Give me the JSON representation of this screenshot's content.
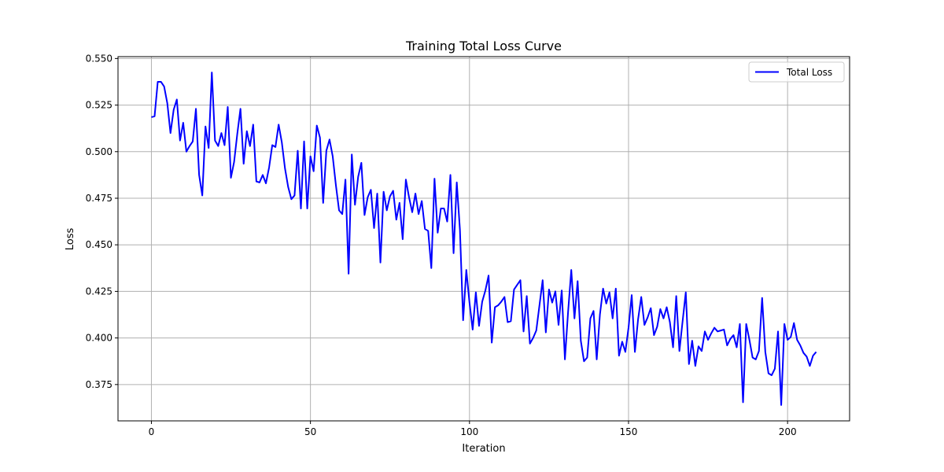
{
  "chart_data": {
    "type": "line",
    "title": "Training Total Loss Curve",
    "xlabel": "Iteration",
    "ylabel": "Loss",
    "xlim": [
      -10.5,
      219.5
    ],
    "ylim": [
      0.3555,
      0.551
    ],
    "xticks": [
      0,
      50,
      100,
      150,
      200
    ],
    "xtick_labels": [
      "0",
      "50",
      "100",
      "150",
      "200"
    ],
    "yticks": [
      0.375,
      0.4,
      0.425,
      0.45,
      0.475,
      0.5,
      0.525,
      0.55
    ],
    "ytick_labels": [
      "0.375",
      "0.400",
      "0.425",
      "0.450",
      "0.475",
      "0.500",
      "0.525",
      "0.550"
    ],
    "grid": true,
    "legend_position": "top-right",
    "series": [
      {
        "name": "Total Loss",
        "color": "#0000ff",
        "x": [
          0,
          1,
          2,
          3,
          4,
          5,
          6,
          7,
          8,
          9,
          10,
          11,
          12,
          13,
          14,
          15,
          16,
          17,
          18,
          19,
          20,
          21,
          22,
          23,
          24,
          25,
          26,
          27,
          28,
          29,
          30,
          31,
          32,
          33,
          34,
          35,
          36,
          37,
          38,
          39,
          40,
          41,
          42,
          43,
          44,
          45,
          46,
          47,
          48,
          49,
          50,
          51,
          52,
          53,
          54,
          55,
          56,
          57,
          58,
          59,
          60,
          61,
          62,
          63,
          64,
          65,
          66,
          67,
          68,
          69,
          70,
          71,
          72,
          73,
          74,
          75,
          76,
          77,
          78,
          79,
          80,
          81,
          82,
          83,
          84,
          85,
          86,
          87,
          88,
          89,
          90,
          91,
          92,
          93,
          94,
          95,
          96,
          97,
          98,
          99,
          100,
          101,
          102,
          103,
          104,
          105,
          106,
          107,
          108,
          109,
          110,
          111,
          112,
          113,
          114,
          115,
          116,
          117,
          118,
          119,
          120,
          121,
          122,
          123,
          124,
          125,
          126,
          127,
          128,
          129,
          130,
          131,
          132,
          133,
          134,
          135,
          136,
          137,
          138,
          139,
          140,
          141,
          142,
          143,
          144,
          145,
          146,
          147,
          148,
          149,
          150,
          151,
          152,
          153,
          154,
          155,
          156,
          157,
          158,
          159,
          160,
          161,
          162,
          163,
          164,
          165,
          166,
          167,
          168,
          169,
          170,
          171,
          172,
          173,
          174,
          175,
          176,
          177,
          178,
          179,
          180,
          181,
          182,
          183,
          184,
          185,
          186,
          187,
          188,
          189,
          190,
          191,
          192,
          193,
          194,
          195,
          196,
          197,
          198,
          199,
          200,
          201,
          202,
          203,
          204,
          205,
          206,
          207,
          208,
          209
        ],
        "values": [
          0.5185,
          0.519,
          0.5375,
          0.5375,
          0.535,
          0.526,
          0.51,
          0.5225,
          0.528,
          0.506,
          0.5155,
          0.5,
          0.503,
          0.5055,
          0.523,
          0.4875,
          0.4765,
          0.5135,
          0.502,
          0.5425,
          0.506,
          0.503,
          0.51,
          0.5035,
          0.524,
          0.486,
          0.4945,
          0.5095,
          0.523,
          0.4935,
          0.511,
          0.503,
          0.5145,
          0.484,
          0.4835,
          0.4875,
          0.483,
          0.4915,
          0.5035,
          0.5025,
          0.5145,
          0.505,
          0.491,
          0.481,
          0.4745,
          0.4765,
          0.5005,
          0.4695,
          0.5055,
          0.4695,
          0.4975,
          0.4895,
          0.514,
          0.5075,
          0.4725,
          0.5005,
          0.5065,
          0.4975,
          0.482,
          0.4685,
          0.4665,
          0.485,
          0.4345,
          0.4985,
          0.4715,
          0.4865,
          0.494,
          0.466,
          0.4755,
          0.4795,
          0.459,
          0.4775,
          0.4405,
          0.4785,
          0.4685,
          0.476,
          0.479,
          0.4635,
          0.4725,
          0.453,
          0.485,
          0.4755,
          0.4675,
          0.4775,
          0.4665,
          0.4735,
          0.4585,
          0.4575,
          0.4375,
          0.4855,
          0.4565,
          0.4695,
          0.4695,
          0.4625,
          0.4875,
          0.4455,
          0.4835,
          0.458,
          0.4095,
          0.4365,
          0.419,
          0.4045,
          0.4245,
          0.4065,
          0.4195,
          0.4255,
          0.4335,
          0.3975,
          0.4165,
          0.4175,
          0.4195,
          0.422,
          0.4085,
          0.409,
          0.426,
          0.4285,
          0.431,
          0.4035,
          0.4225,
          0.397,
          0.4,
          0.404,
          0.4175,
          0.431,
          0.403,
          0.426,
          0.419,
          0.425,
          0.407,
          0.4255,
          0.3885,
          0.414,
          0.4365,
          0.4105,
          0.4305,
          0.3985,
          0.3875,
          0.3895,
          0.4105,
          0.4145,
          0.3885,
          0.4125,
          0.4265,
          0.4185,
          0.4245,
          0.4105,
          0.4265,
          0.3905,
          0.398,
          0.3925,
          0.4055,
          0.423,
          0.3925,
          0.41,
          0.422,
          0.407,
          0.411,
          0.416,
          0.4015,
          0.406,
          0.4155,
          0.4105,
          0.4165,
          0.4085,
          0.395,
          0.4225,
          0.393,
          0.409,
          0.4245,
          0.386,
          0.3985,
          0.385,
          0.3955,
          0.393,
          0.4035,
          0.399,
          0.4025,
          0.4055,
          0.4035,
          0.404,
          0.4045,
          0.396,
          0.3995,
          0.4015,
          0.395,
          0.4075,
          0.3655,
          0.4075,
          0.399,
          0.3895,
          0.3885,
          0.393,
          0.4215,
          0.3925,
          0.381,
          0.38,
          0.3835,
          0.4035,
          0.364,
          0.4075,
          0.399,
          0.4005,
          0.408,
          0.399,
          0.396,
          0.392,
          0.39,
          0.385,
          0.3905,
          0.3925
        ]
      }
    ]
  }
}
